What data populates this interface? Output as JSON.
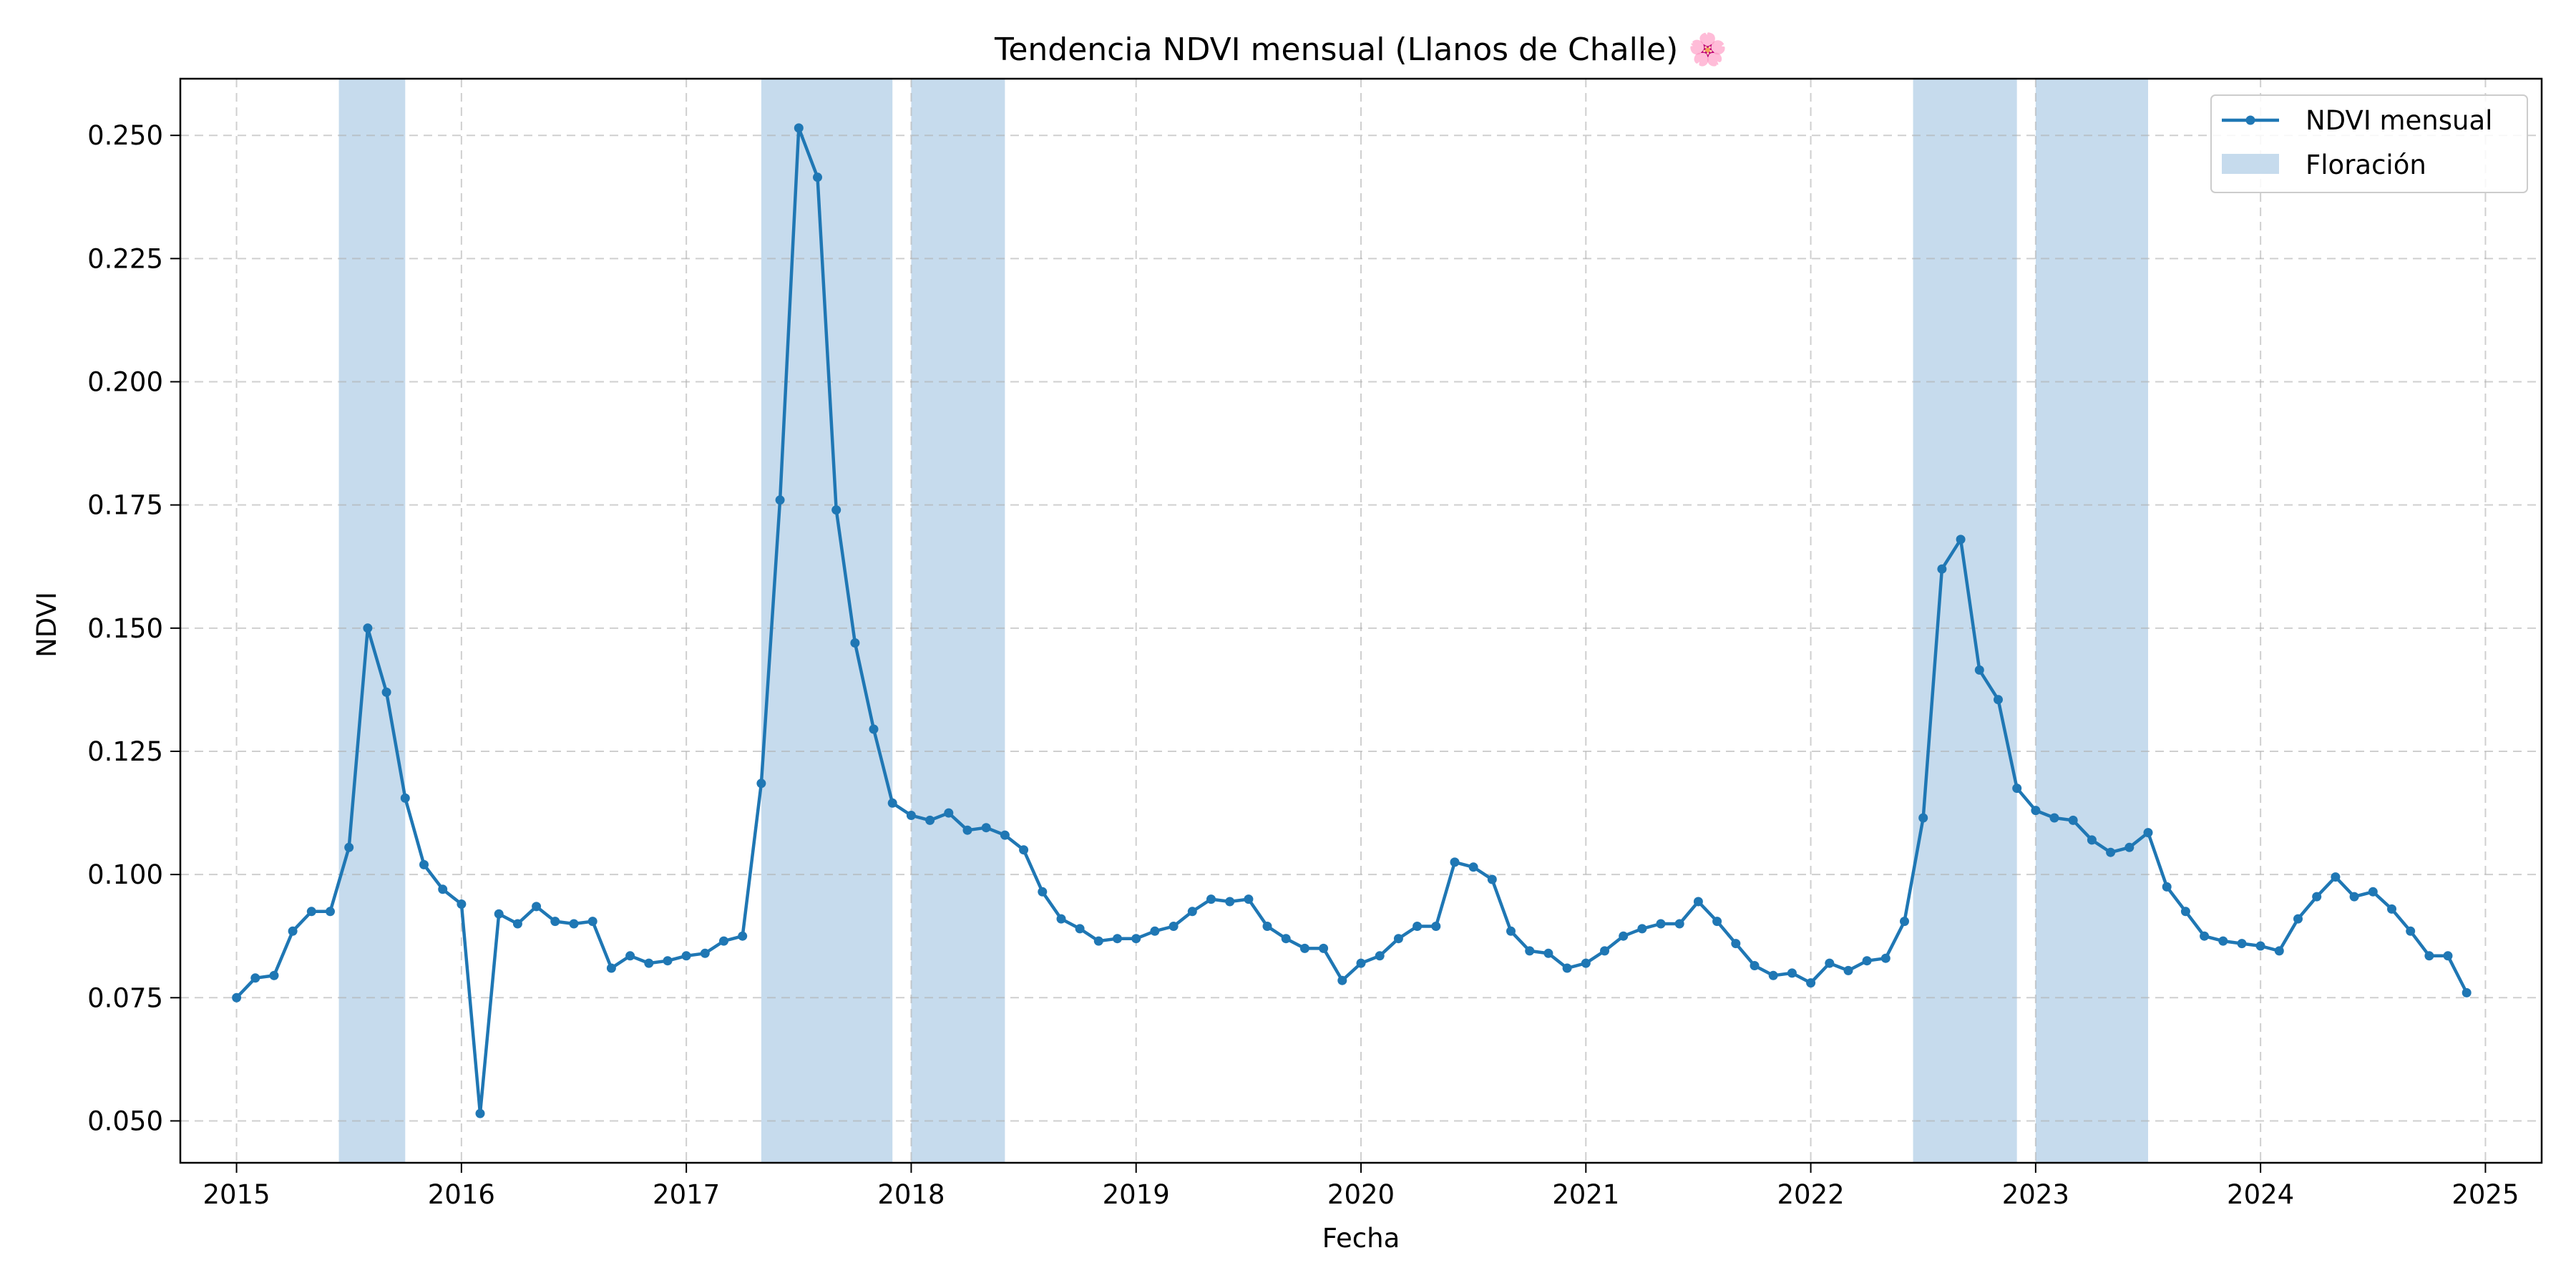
{
  "chart_data": {
    "type": "line",
    "title": "Tendencia NDVI mensual (Llanos de Challe) 🌸",
    "xlabel": "Fecha",
    "ylabel": "NDVI",
    "x_ticks": [
      "2015",
      "2016",
      "2017",
      "2018",
      "2019",
      "2020",
      "2021",
      "2022",
      "2023",
      "2024",
      "2025"
    ],
    "y_ticks": [
      "0.050",
      "0.075",
      "0.100",
      "0.125",
      "0.150",
      "0.175",
      "0.200",
      "0.225",
      "0.250"
    ],
    "xlim": [
      "2014-10",
      "2025-04"
    ],
    "ylim": [
      0.0415,
      0.2615
    ],
    "grid": true,
    "legend_position": "top-right",
    "colors": {
      "line": "#1f77b4",
      "band": "#c6dbed"
    },
    "series": [
      {
        "name": "NDVI mensual",
        "x": [
          "2015-01",
          "2015-02",
          "2015-03",
          "2015-04",
          "2015-05",
          "2015-06",
          "2015-07",
          "2015-08",
          "2015-09",
          "2015-10",
          "2015-11",
          "2015-12",
          "2016-01",
          "2016-02",
          "2016-03",
          "2016-04",
          "2016-05",
          "2016-06",
          "2016-07",
          "2016-08",
          "2016-09",
          "2016-10",
          "2016-11",
          "2016-12",
          "2017-01",
          "2017-02",
          "2017-03",
          "2017-04",
          "2017-05",
          "2017-06",
          "2017-07",
          "2017-08",
          "2017-09",
          "2017-10",
          "2017-11",
          "2017-12",
          "2018-01",
          "2018-02",
          "2018-03",
          "2018-04",
          "2018-05",
          "2018-06",
          "2018-07",
          "2018-08",
          "2018-09",
          "2018-10",
          "2018-11",
          "2018-12",
          "2019-01",
          "2019-02",
          "2019-03",
          "2019-04",
          "2019-05",
          "2019-06",
          "2019-07",
          "2019-08",
          "2019-09",
          "2019-10",
          "2019-11",
          "2019-12",
          "2020-01",
          "2020-02",
          "2020-03",
          "2020-04",
          "2020-05",
          "2020-06",
          "2020-07",
          "2020-08",
          "2020-09",
          "2020-10",
          "2020-11",
          "2020-12",
          "2021-01",
          "2021-02",
          "2021-03",
          "2021-04",
          "2021-05",
          "2021-06",
          "2021-07",
          "2021-08",
          "2021-09",
          "2021-10",
          "2021-11",
          "2021-12",
          "2022-01",
          "2022-02",
          "2022-03",
          "2022-04",
          "2022-05",
          "2022-06",
          "2022-07",
          "2022-08",
          "2022-09",
          "2022-10",
          "2022-11",
          "2022-12",
          "2023-01",
          "2023-02",
          "2023-03",
          "2023-04",
          "2023-05",
          "2023-06",
          "2023-07",
          "2023-08",
          "2023-09",
          "2023-10",
          "2023-11",
          "2023-12",
          "2024-01",
          "2024-02",
          "2024-03",
          "2024-04",
          "2024-05",
          "2024-06",
          "2024-07",
          "2024-08",
          "2024-09",
          "2024-10",
          "2024-11",
          "2024-12"
        ],
        "values": [
          0.075,
          0.079,
          0.0795,
          0.0885,
          0.0925,
          0.0925,
          0.1055,
          0.15,
          0.137,
          0.1155,
          0.102,
          0.097,
          0.094,
          0.0515,
          0.092,
          0.09,
          0.0935,
          0.0905,
          0.09,
          0.0905,
          0.081,
          0.0835,
          0.082,
          0.0825,
          0.0835,
          0.084,
          0.0865,
          0.0875,
          0.1185,
          0.176,
          0.2515,
          0.2415,
          0.174,
          0.147,
          0.1295,
          0.1145,
          0.112,
          0.111,
          0.1125,
          0.109,
          0.1095,
          0.108,
          0.105,
          0.0965,
          0.091,
          0.089,
          0.0865,
          0.087,
          0.087,
          0.0885,
          0.0895,
          0.0925,
          0.095,
          0.0945,
          0.095,
          0.0895,
          0.087,
          0.085,
          0.085,
          0.0785,
          0.082,
          0.0835,
          0.087,
          0.0895,
          0.0895,
          0.1025,
          0.1015,
          0.099,
          0.0885,
          0.0845,
          0.084,
          0.081,
          0.082,
          0.0845,
          0.0875,
          0.089,
          0.09,
          0.09,
          0.0945,
          0.0905,
          0.086,
          0.0815,
          0.0795,
          0.08,
          0.078,
          0.082,
          0.0805,
          0.0825,
          0.083,
          0.0905,
          0.1115,
          0.162,
          0.168,
          0.1415,
          0.1355,
          0.1175,
          0.113,
          0.1115,
          0.111,
          0.107,
          0.1045,
          0.1055,
          0.1085,
          0.0975,
          0.0925,
          0.0875,
          0.0865,
          0.086,
          0.0855,
          0.0845,
          0.091,
          0.0955,
          0.0995,
          0.0955,
          0.0965,
          0.093,
          0.0885,
          0.0835,
          0.0835,
          0.076
        ]
      }
    ],
    "bands": {
      "name": "Floración",
      "ranges": [
        [
          "2015-06-15",
          "2015-10-01"
        ],
        [
          "2017-05-01",
          "2017-12-01"
        ],
        [
          "2018-01-01",
          "2018-06-01"
        ],
        [
          "2022-06-15",
          "2022-12-01"
        ],
        [
          "2023-01-01",
          "2023-07-01"
        ]
      ]
    }
  }
}
